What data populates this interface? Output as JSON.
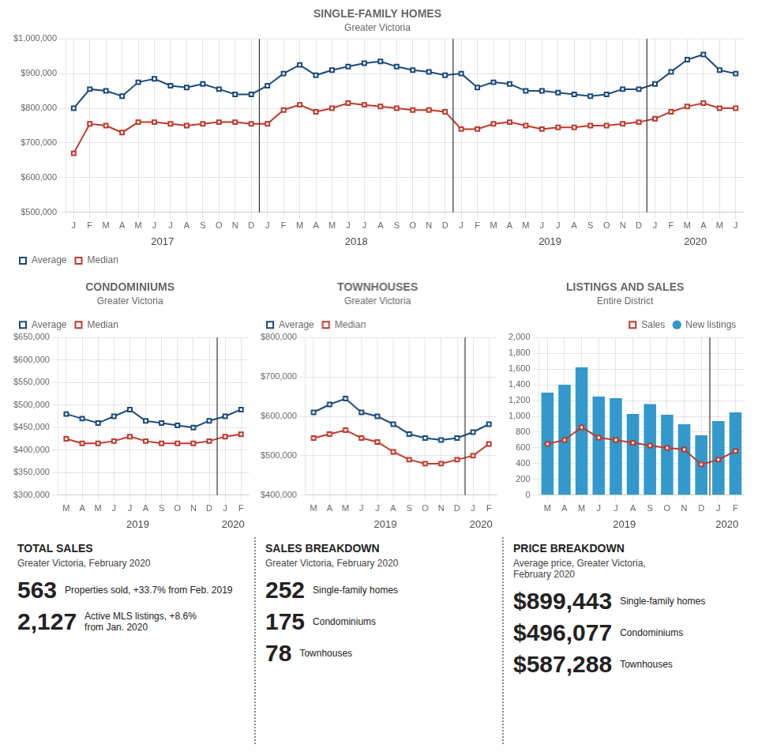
{
  "chart_data": [
    {
      "type": "line",
      "title": "SINGLE-FAMILY HOMES",
      "subtitle": "Greater Victoria",
      "categories": [
        "J",
        "F",
        "M",
        "A",
        "M",
        "J",
        "J",
        "A",
        "S",
        "O",
        "N",
        "D",
        "J",
        "F",
        "M",
        "A",
        "M",
        "J",
        "J",
        "A",
        "S",
        "O",
        "N",
        "D",
        "J",
        "F",
        "M",
        "A",
        "M",
        "J",
        "J",
        "A",
        "S",
        "O",
        "N",
        "D",
        "J",
        "F",
        "M",
        "A",
        "M",
        "J"
      ],
      "series": [
        {
          "name": "Average",
          "color": "#1a4a7a",
          "marker": "square",
          "values": [
            800000,
            855000,
            850000,
            835000,
            875000,
            885000,
            865000,
            860000,
            870000,
            855000,
            840000,
            840000,
            865000,
            900000,
            925000,
            895000,
            910000,
            920000,
            930000,
            935000,
            920000,
            910000,
            905000,
            895000,
            900000,
            860000,
            875000,
            870000,
            850000,
            850000,
            845000,
            840000,
            835000,
            840000,
            855000,
            855000,
            870000,
            905000,
            940000,
            955000,
            910000,
            900000
          ]
        },
        {
          "name": "Median",
          "color": "#c0392b",
          "marker": "square",
          "values": [
            670000,
            755000,
            750000,
            730000,
            760000,
            760000,
            755000,
            750000,
            755000,
            760000,
            760000,
            755000,
            755000,
            795000,
            810000,
            790000,
            800000,
            815000,
            810000,
            805000,
            800000,
            795000,
            795000,
            790000,
            740000,
            740000,
            755000,
            760000,
            750000,
            740000,
            745000,
            745000,
            750000,
            750000,
            755000,
            760000,
            770000,
            790000,
            805000,
            815000,
            800000,
            800000
          ]
        }
      ],
      "ylim": [
        500000,
        1000000
      ],
      "yticks": [
        {
          "value": 500000,
          "label": "$500,000"
        },
        {
          "value": 600000,
          "label": "$600,000"
        },
        {
          "value": 700000,
          "label": "$700,000"
        },
        {
          "value": 800000,
          "label": "$800,000"
        },
        {
          "value": 900000,
          "label": "$900,000"
        },
        {
          "value": 1000000,
          "label": "$1,000,000"
        }
      ],
      "annotations": [
        {
          "text": "2017",
          "x": 5.5
        },
        {
          "text": "2018",
          "x": 17.5
        },
        {
          "text": "2019",
          "x": 29.5
        },
        {
          "text": "2020",
          "x": 38.5
        },
        {
          "type": "vline",
          "x": 11.5,
          "color": "#333333"
        },
        {
          "type": "vline",
          "x": 23.5,
          "color": "#333333"
        },
        {
          "type": "vline",
          "x": 35.5,
          "color": "#333333"
        }
      ],
      "grid": true,
      "legend": "lower left"
    },
    {
      "type": "line",
      "title": "CONDOMINIUMS",
      "subtitle": "Greater Victoria",
      "categories": [
        "M",
        "A",
        "M",
        "J",
        "J",
        "A",
        "S",
        "O",
        "N",
        "D",
        "J",
        "F"
      ],
      "series": [
        {
          "name": "Average",
          "color": "#1a4a7a",
          "marker": "square",
          "values": [
            480000,
            470000,
            460000,
            475000,
            490000,
            465000,
            460000,
            455000,
            450000,
            465000,
            475000,
            490000
          ]
        },
        {
          "name": "Median",
          "color": "#c0392b",
          "marker": "square",
          "values": [
            425000,
            415000,
            415000,
            420000,
            430000,
            420000,
            415000,
            415000,
            415000,
            420000,
            430000,
            435000
          ]
        }
      ],
      "ylim": [
        300000,
        650000
      ],
      "yticks": [
        {
          "value": 300000,
          "label": "$300,000"
        },
        {
          "value": 350000,
          "label": "$350,000"
        },
        {
          "value": 400000,
          "label": "$400,000"
        },
        {
          "value": 450000,
          "label": "$450,000"
        },
        {
          "value": 500000,
          "label": "$500,000"
        },
        {
          "value": 550000,
          "label": "$550,000"
        },
        {
          "value": 600000,
          "label": "$600,000"
        },
        {
          "value": 650000,
          "label": "$650,000"
        }
      ],
      "annotations": [
        {
          "text": "2019",
          "x": 4.5
        },
        {
          "text": "2020",
          "x": 10.5
        },
        {
          "type": "vline",
          "x": 9.5,
          "color": "#333333"
        }
      ],
      "grid": true,
      "legend": "upper left"
    },
    {
      "type": "line",
      "title": "TOWNHOUSES",
      "subtitle": "Greater Victoria",
      "categories": [
        "M",
        "A",
        "M",
        "J",
        "J",
        "A",
        "S",
        "O",
        "N",
        "D",
        "J",
        "F"
      ],
      "series": [
        {
          "name": "Average",
          "color": "#1a4a7a",
          "marker": "square",
          "values": [
            610000,
            630000,
            645000,
            610000,
            600000,
            580000,
            555000,
            545000,
            540000,
            545000,
            560000,
            580000
          ]
        },
        {
          "name": "Median",
          "color": "#c0392b",
          "marker": "square",
          "values": [
            545000,
            555000,
            565000,
            545000,
            535000,
            510000,
            490000,
            480000,
            480000,
            490000,
            500000,
            530000
          ]
        }
      ],
      "ylim": [
        400000,
        800000
      ],
      "yticks": [
        {
          "value": 400000,
          "label": "$400,000"
        },
        {
          "value": 500000,
          "label": "$500,000"
        },
        {
          "value": 600000,
          "label": "$600,000"
        },
        {
          "value": 700000,
          "label": "$700,000"
        },
        {
          "value": 800000,
          "label": "$800,000"
        }
      ],
      "annotations": [
        {
          "text": "2019",
          "x": 4.5
        },
        {
          "text": "2020",
          "x": 10.5
        },
        {
          "type": "vline",
          "x": 9.5,
          "color": "#333333"
        }
      ],
      "grid": true,
      "legend": "upper left"
    },
    {
      "type": "bar",
      "title": "LISTINGS AND SALES",
      "subtitle": "Entire District",
      "categories": [
        "M",
        "A",
        "M",
        "J",
        "J",
        "A",
        "S",
        "O",
        "N",
        "D",
        "J",
        "F"
      ],
      "series": [
        {
          "name": "New listings",
          "type": "bar",
          "color": "#3399cc",
          "values": [
            1300,
            1400,
            1620,
            1250,
            1230,
            1030,
            1155,
            1020,
            900,
            760,
            940,
            1050
          ]
        },
        {
          "name": "Sales",
          "type": "line",
          "color": "#c0392b",
          "marker": "square",
          "values": [
            650,
            700,
            860,
            730,
            700,
            665,
            630,
            600,
            580,
            390,
            450,
            560
          ]
        }
      ],
      "ylim": [
        0,
        2000
      ],
      "yticks": [
        0,
        200,
        400,
        600,
        800,
        {
          "value": 1000,
          "label": "1,000"
        },
        {
          "value": 1200,
          "label": "1,200"
        },
        {
          "value": 1400,
          "label": "1,400"
        },
        {
          "value": 1600,
          "label": "1,600"
        },
        {
          "value": 1800,
          "label": "1,800"
        },
        {
          "value": 2000,
          "label": "2,000"
        }
      ],
      "annotations": [
        {
          "text": "2019",
          "x": 4.5
        },
        {
          "text": "2020",
          "x": 10.5
        },
        {
          "type": "vline",
          "x": 9.5,
          "color": "#333333"
        }
      ],
      "grid": true,
      "legend": "upper right"
    },
    {
      "type": "text",
      "title": "TOTAL SALES",
      "subtitle": "Greater Victoria, February 2020",
      "annotations": [
        {
          "headline": "563",
          "caption": "Properties sold, +33.7% from Feb. 2019"
        },
        {
          "headline": "2,127",
          "caption": "Active MLS listings, +8.6%\nfrom Jan. 2020"
        }
      ]
    },
    {
      "type": "text",
      "title": "SALES BREAKDOWN",
      "subtitle": "Greater Victoria, February 2020",
      "annotations": [
        {
          "headline": "252",
          "caption": "Single-family homes"
        },
        {
          "headline": "175",
          "caption": "Condominiums"
        },
        {
          "headline": "78",
          "caption": "Townhouses"
        }
      ]
    },
    {
      "type": "text",
      "title": "PRICE BREAKDOWN",
      "subtitle": "Average price, Greater Victoria,\nFebruary 2020",
      "annotations": [
        {
          "headline": "$899,443",
          "caption": "Single-family homes"
        },
        {
          "headline": "$496,077",
          "caption": "Condominiums"
        },
        {
          "headline": "$587,288",
          "caption": "Townhouses"
        }
      ]
    }
  ]
}
